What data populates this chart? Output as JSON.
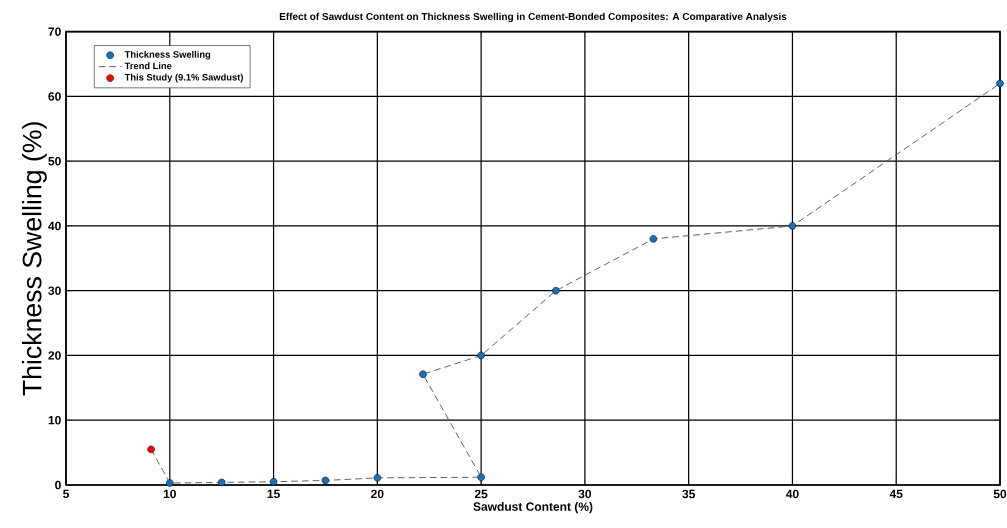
{
  "chart_data": {
    "type": "scatter",
    "title": "Effect of Sawdust Content on Thickness Swelling in Cement-Bonded Composites: A Comparative Analysis",
    "xlabel": "Sawdust Content (%)",
    "ylabel": "Thickness Swelling (%)",
    "series": [
      {
        "name": "Thickness Swelling",
        "color": "#1f6fb4",
        "marker": "circle",
        "x": [
          10,
          12.5,
          15,
          17.5,
          20,
          25,
          22.2,
          25,
          28.6,
          33.3,
          40,
          50
        ],
        "values": [
          0.3,
          0.4,
          0.5,
          0.7,
          1.1,
          1.2,
          17.1,
          20,
          30,
          38,
          40,
          62
        ]
      },
      {
        "name": "Trend Line",
        "type": "line",
        "color": "#555555",
        "line_style": "dashed",
        "marker": "none",
        "x": [
          9.1,
          10,
          12.5,
          15,
          17.5,
          20,
          25,
          22.2,
          25,
          28.6,
          33.3,
          40,
          50
        ],
        "values": [
          5.5,
          0.3,
          0.4,
          0.5,
          0.7,
          1.1,
          1.2,
          17.1,
          20,
          30,
          38,
          40,
          62
        ]
      },
      {
        "name": "This Study (9.1% Sawdust)",
        "color": "#ff0000",
        "marker": "circle",
        "x": [
          9.1
        ],
        "values": [
          5.5
        ]
      }
    ],
    "xlim": [
      5,
      50
    ],
    "ylim": [
      0,
      70
    ],
    "xticks": [
      5,
      10,
      15,
      20,
      25,
      30,
      35,
      40,
      45,
      50
    ],
    "yticks": [
      0,
      10,
      20,
      30,
      40,
      50,
      60,
      70
    ],
    "grid": true,
    "legend": "top left"
  }
}
